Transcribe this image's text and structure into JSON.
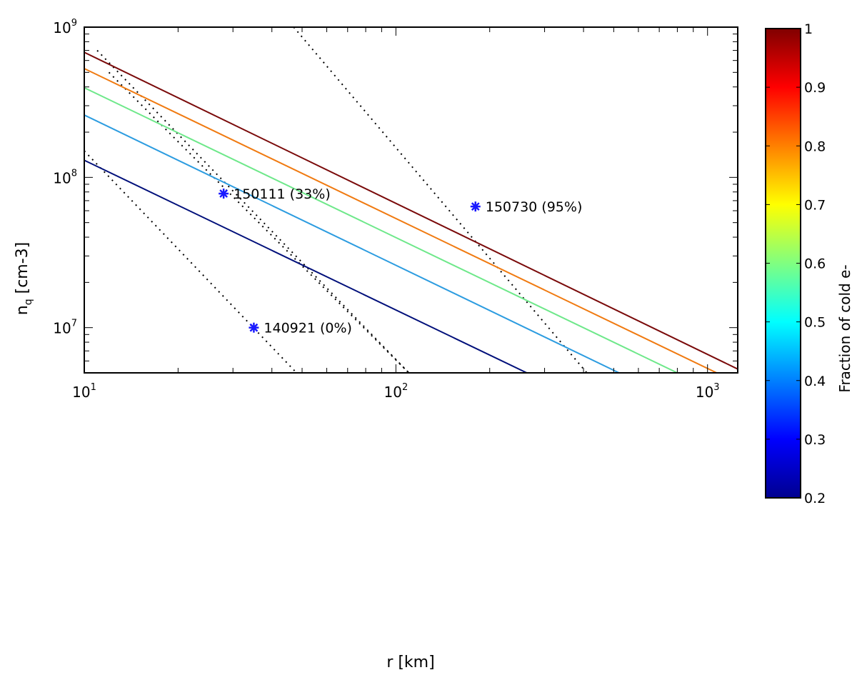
{
  "chart_data": {
    "type": "line",
    "xscale": "log",
    "yscale": "log",
    "xlim": [
      10,
      1250
    ],
    "ylim": [
      5000000,
      1000000000
    ],
    "xlabel": "r [km]",
    "ylabel": "n",
    "ylabel_sub": "q",
    "ylabel_unit": "[cm-3]",
    "x_ticks": [
      {
        "value": 10,
        "base": "10",
        "exp": "1"
      },
      {
        "value": 100,
        "base": "10",
        "exp": "2"
      },
      {
        "value": 1000,
        "base": "10",
        "exp": "3"
      }
    ],
    "y_ticks": [
      {
        "value": 10000000,
        "base": "10",
        "exp": "7"
      },
      {
        "value": 100000000,
        "base": "10",
        "exp": "8"
      },
      {
        "value": 1000000000,
        "base": "10",
        "exp": "9"
      }
    ],
    "series": [
      {
        "name": "fraction 0.25",
        "color": "#000f7a",
        "points": [
          [
            10,
            130000000
          ],
          [
            263,
            5000000
          ]
        ]
      },
      {
        "name": "fraction 0.45",
        "color": "#2c9ce0",
        "points": [
          [
            10,
            260000000
          ],
          [
            520,
            5000000
          ]
        ]
      },
      {
        "name": "fraction 0.60",
        "color": "#6ee88a",
        "points": [
          [
            10,
            395000000
          ],
          [
            800,
            5000000
          ]
        ]
      },
      {
        "name": "fraction 0.80",
        "color": "#f07a10",
        "points": [
          [
            10,
            530000000
          ],
          [
            1070,
            5000000
          ]
        ]
      },
      {
        "name": "fraction 0.98",
        "color": "#7a0a0a",
        "points": [
          [
            10,
            680000000
          ],
          [
            1250,
            5300000
          ]
        ]
      }
    ],
    "guide_lines": [
      {
        "points": [
          [
            10,
            150000000
          ],
          [
            48,
            5000000
          ]
        ]
      },
      {
        "points": [
          [
            12,
            500000000
          ],
          [
            110,
            5000000
          ]
        ]
      },
      {
        "points": [
          [
            11,
            700000000
          ],
          [
            110,
            5000000
          ]
        ]
      },
      {
        "points": [
          [
            47,
            1000000000
          ],
          [
            410,
            5000000
          ]
        ]
      }
    ],
    "markers": [
      {
        "x": 28,
        "y": 78000000,
        "label": "150111 (33%)"
      },
      {
        "x": 180,
        "y": 64000000,
        "label": "150730 (95%)"
      },
      {
        "x": 35,
        "y": 10000000,
        "label": "140921 (0%)"
      }
    ],
    "colorbar": {
      "label": "Fraction of cold e-",
      "min": 0.2,
      "max": 1,
      "ticks": [
        "0.2",
        "0.3",
        "0.4",
        "0.5",
        "0.6",
        "0.7",
        "0.8",
        "0.9",
        "1"
      ],
      "colors": [
        "#00008f",
        "#0000ff",
        "#0080ff",
        "#00ffff",
        "#80ff80",
        "#ffff00",
        "#ff8000",
        "#ff0000",
        "#800000"
      ]
    }
  }
}
